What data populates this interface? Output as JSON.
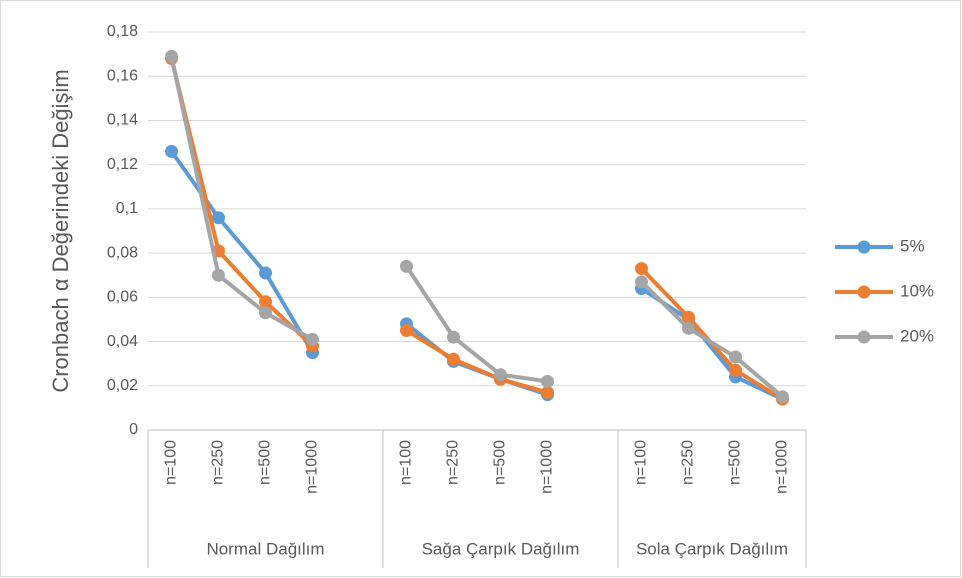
{
  "chart_data": {
    "type": "line",
    "y_label": "Cronbach α Değerindeki Değişim",
    "groups": [
      {
        "name": "Normal Dağılım",
        "categories": [
          "n=100",
          "n=250",
          "n=500",
          "n=1000",
          null
        ]
      },
      {
        "name": "Sağa Çarpık Dağılım",
        "categories": [
          "n=100",
          "n=250",
          "n=500",
          "n=1000",
          null
        ]
      },
      {
        "name": "Sola Çarpık Dağılım",
        "categories": [
          "n=100",
          "n=250",
          "n=500",
          "n=1000"
        ]
      }
    ],
    "series": [
      {
        "name": "5%",
        "color": "#5b9bd5",
        "values": [
          0.126,
          0.096,
          0.071,
          0.035,
          null,
          0.048,
          0.031,
          0.023,
          0.016,
          null,
          0.064,
          0.05,
          0.024,
          0.014
        ]
      },
      {
        "name": "10%",
        "color": "#ed7d31",
        "values": [
          0.168,
          0.081,
          0.058,
          0.038,
          null,
          0.045,
          0.032,
          0.023,
          0.017,
          null,
          0.073,
          0.051,
          0.027,
          0.014
        ]
      },
      {
        "name": "20%",
        "color": "#a5a5a5",
        "values": [
          0.169,
          0.07,
          0.053,
          0.041,
          null,
          0.074,
          0.042,
          0.025,
          0.022,
          null,
          0.067,
          0.046,
          0.033,
          0.015
        ]
      }
    ],
    "ylim": [
      0,
      0.18
    ],
    "yticks": [
      0,
      {
        "value": 0.02,
        "label": "0,02"
      },
      {
        "value": 0.04,
        "label": "0,04"
      },
      {
        "value": 0.06,
        "label": "0,06"
      },
      {
        "value": 0.08,
        "label": "0,08"
      },
      {
        "value": 0.1,
        "label": "0,1"
      },
      {
        "value": 0.12,
        "label": "0,12"
      },
      {
        "value": 0.14,
        "label": "0,14"
      },
      {
        "value": 0.16,
        "label": "0,16"
      },
      {
        "value": 0.18,
        "label": "0,18"
      }
    ],
    "grid": true,
    "legend": "right"
  }
}
